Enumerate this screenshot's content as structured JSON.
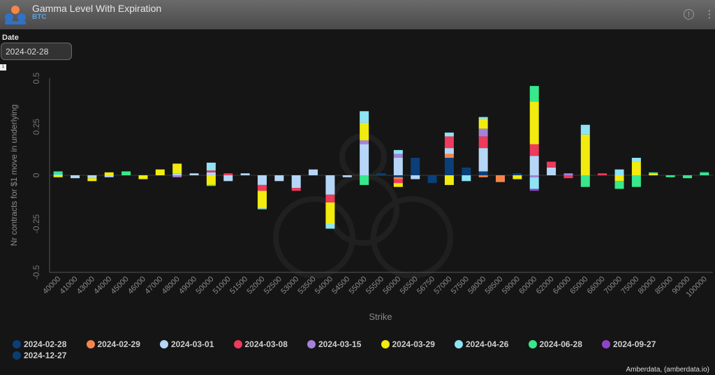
{
  "header": {
    "title": "Gamma Level With Expiration",
    "subtitle": "BTC",
    "info_glyph": "!",
    "menu_glyph": "⋮"
  },
  "controls": {
    "date_label": "Date",
    "date_value": "2024-02-28",
    "badge": "1"
  },
  "credit": "Amberdata, (amberdata.io)",
  "icons": [
    "amberdata-logo-icon",
    "info-icon",
    "kebab-menu-icon"
  ],
  "chart_data": {
    "type": "bar",
    "stacked": true,
    "xlabel": "Strike",
    "ylabel": "Nr contracts for $1 move in underlying",
    "ylim": [
      -0.5,
      0.5
    ],
    "yticks": [
      0.5,
      0.25,
      0,
      -0.25,
      -0.5
    ],
    "ytick_labels": [
      "0.5",
      "0.25",
      "0",
      "-0.25",
      "-0.5"
    ],
    "grid": false,
    "legend_position": "bottom",
    "categories": [
      "40000",
      "41000",
      "43000",
      "44000",
      "45000",
      "46000",
      "47000",
      "48000",
      "49000",
      "50000",
      "51000",
      "51500",
      "52000",
      "52500",
      "53000",
      "53500",
      "54000",
      "54500",
      "55000",
      "55500",
      "56000",
      "56500",
      "56750",
      "57000",
      "57500",
      "58000",
      "58500",
      "59000",
      "60000",
      "62000",
      "64000",
      "65000",
      "66000",
      "70000",
      "75000",
      "80000",
      "85000",
      "90000",
      "100000"
    ],
    "series": [
      {
        "name": "2024-02-28",
        "color": "#0b3f78",
        "values": [
          0,
          0,
          0,
          0,
          0,
          0,
          0,
          0,
          0,
          0,
          0,
          0,
          0,
          0,
          0,
          0,
          0,
          0,
          0,
          0.01,
          -0.01,
          0.09,
          -0.04,
          0.09,
          0.04,
          0.02,
          0,
          0.01,
          0,
          0,
          0,
          0,
          0,
          0,
          0,
          0,
          0,
          0,
          0
        ]
      },
      {
        "name": "2024-02-29",
        "color": "#f5854a",
        "values": [
          0,
          0,
          0,
          0,
          0,
          0,
          0,
          0,
          0,
          0,
          0,
          0,
          0,
          0,
          0,
          0,
          0,
          0,
          0,
          0,
          -0.01,
          0,
          0,
          0.02,
          0,
          -0.01,
          -0.035,
          0,
          0,
          0,
          0,
          0,
          0,
          0,
          0,
          0,
          0,
          0,
          0
        ]
      },
      {
        "name": "2024-03-01",
        "color": "#b5d6f7",
        "values": [
          0,
          -0.015,
          -0.015,
          -0.01,
          0,
          0,
          0,
          0.01,
          0.01,
          0.015,
          -0.03,
          0.01,
          -0.05,
          -0.03,
          -0.065,
          0.03,
          -0.1,
          -0.01,
          0.16,
          0,
          0.09,
          -0.02,
          0,
          0.03,
          0,
          0.12,
          0,
          0,
          0.1,
          0.04,
          0,
          0,
          0,
          0,
          0,
          0,
          0,
          0,
          0
        ]
      },
      {
        "name": "2024-03-08",
        "color": "#ee3a5b",
        "values": [
          0,
          0,
          0,
          0,
          0,
          0,
          0,
          0,
          0,
          0.01,
          0.01,
          0,
          -0.03,
          0,
          -0.015,
          0,
          -0.04,
          0,
          0,
          0,
          -0.02,
          0,
          0,
          0.06,
          0,
          0.06,
          0,
          0,
          0.06,
          0.03,
          -0.015,
          0,
          0.01,
          0,
          0,
          0,
          0,
          0,
          0
        ]
      },
      {
        "name": "2024-03-15",
        "color": "#a482d8",
        "values": [
          0,
          0,
          0,
          0,
          0,
          0,
          0,
          -0.01,
          0,
          0,
          0,
          0,
          0,
          0,
          0,
          0,
          0,
          0,
          0.02,
          0,
          0.02,
          0,
          0,
          0,
          0,
          0.04,
          0,
          0,
          -0.01,
          0,
          0.01,
          0,
          0,
          0,
          0,
          0,
          0,
          0,
          0
        ]
      },
      {
        "name": "2024-03-29",
        "color": "#f1eb0f",
        "values": [
          -0.01,
          0,
          -0.015,
          0.015,
          0,
          -0.02,
          0.03,
          0.05,
          0,
          -0.05,
          0,
          0,
          -0.09,
          0,
          0,
          0,
          -0.11,
          0,
          0.09,
          0,
          -0.02,
          0,
          0,
          -0.05,
          0,
          0.05,
          0,
          -0.02,
          0.22,
          0,
          0,
          0.21,
          0,
          -0.03,
          0.07,
          0.01,
          0,
          0,
          0
        ]
      },
      {
        "name": "2024-04-26",
        "color": "#8ee3f5",
        "values": [
          0.005,
          0,
          0,
          0,
          0,
          0,
          0,
          0,
          0,
          0.04,
          0,
          0,
          -0.005,
          0,
          0,
          0,
          -0.025,
          0,
          0.06,
          0,
          0.02,
          0,
          0,
          0.02,
          -0.03,
          0.01,
          0,
          0,
          -0.06,
          0,
          0,
          0.05,
          0,
          0.03,
          0.02,
          0,
          0,
          0,
          0
        ]
      },
      {
        "name": "2024-06-28",
        "color": "#37e88c",
        "values": [
          0.015,
          0,
          0,
          0,
          0.02,
          0,
          0,
          0,
          0,
          -0.005,
          0,
          0,
          0,
          0,
          0,
          0,
          0,
          0,
          -0.05,
          0,
          0,
          0,
          0,
          0,
          0,
          0,
          0,
          0,
          0.08,
          0,
          0,
          -0.06,
          0,
          -0.04,
          -0.06,
          0.005,
          -0.01,
          -0.015,
          0.015
        ]
      },
      {
        "name": "2024-09-27",
        "color": "#8e44c8",
        "values": [
          0,
          0,
          0,
          0,
          0,
          0,
          0,
          0,
          0,
          0,
          0,
          0,
          0,
          0,
          0,
          0,
          0,
          0,
          0,
          0,
          0,
          0,
          0,
          0,
          0,
          0,
          0,
          0,
          -0.01,
          0,
          0,
          0,
          0,
          0,
          0,
          0,
          0,
          0,
          0
        ]
      },
      {
        "name": "2024-12-27",
        "color": "#0d3d6e",
        "values": [
          0,
          0,
          0,
          0,
          0,
          0,
          0,
          0,
          0,
          0,
          0,
          0,
          0,
          0,
          0,
          0,
          0,
          0,
          0,
          0,
          0,
          0,
          0,
          0,
          0,
          0,
          0,
          0,
          0,
          0,
          0,
          0,
          0,
          0,
          0,
          0,
          0,
          0,
          0.005
        ]
      }
    ]
  }
}
